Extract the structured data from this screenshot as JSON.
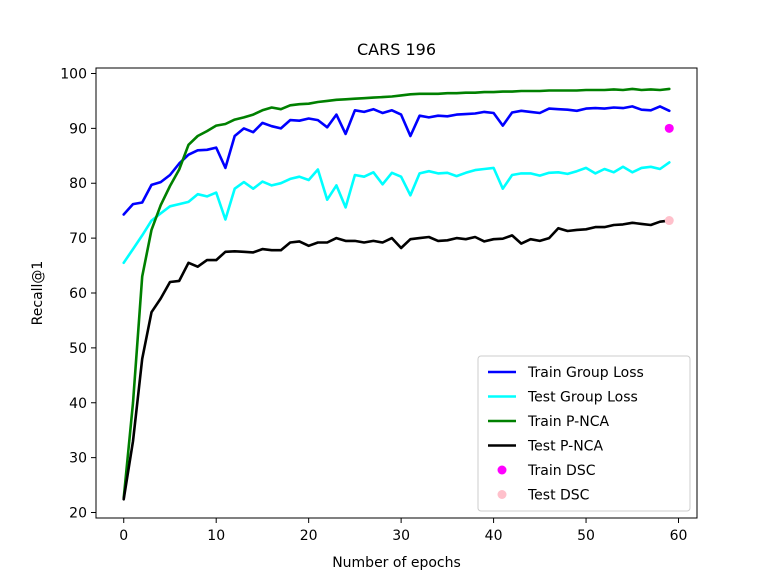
{
  "chart_data": {
    "type": "line",
    "title": "CARS 196",
    "xlabel": "Number of epochs",
    "ylabel": "Recall@1",
    "xlim": [
      -3,
      62
    ],
    "ylim": [
      19,
      101
    ],
    "xticks": [
      0,
      10,
      20,
      30,
      40,
      50,
      60
    ],
    "yticks": [
      20,
      30,
      40,
      50,
      60,
      70,
      80,
      90,
      100
    ],
    "grid": false,
    "legend_position": "lower-right",
    "series": [
      {
        "name": "Train Group Loss",
        "kind": "line",
        "color": "#0000ff",
        "x": [
          0,
          1,
          2,
          3,
          4,
          5,
          6,
          7,
          8,
          9,
          10,
          11,
          12,
          13,
          14,
          15,
          16,
          17,
          18,
          19,
          20,
          21,
          22,
          23,
          24,
          25,
          26,
          27,
          28,
          29,
          30,
          31,
          32,
          33,
          34,
          35,
          36,
          37,
          38,
          39,
          40,
          41,
          42,
          43,
          44,
          45,
          46,
          47,
          48,
          49,
          50,
          51,
          52,
          53,
          54,
          55,
          56,
          57,
          58,
          59
        ],
        "y": [
          74.3,
          76.2,
          76.5,
          79.7,
          80.2,
          81.5,
          83.6,
          85.2,
          86.0,
          86.1,
          86.5,
          82.8,
          88.6,
          90.0,
          89.3,
          91.0,
          90.4,
          90.0,
          91.5,
          91.4,
          91.8,
          91.5,
          90.2,
          92.5,
          89.0,
          93.3,
          93.0,
          93.5,
          92.8,
          93.3,
          92.5,
          88.6,
          92.3,
          92.0,
          92.3,
          92.2,
          92.5,
          92.6,
          92.7,
          93.0,
          92.8,
          90.5,
          92.9,
          93.2,
          93.0,
          92.8,
          93.6,
          93.5,
          93.4,
          93.2,
          93.6,
          93.7,
          93.6,
          93.8,
          93.7,
          94.0,
          93.4,
          93.3,
          94.0,
          93.2
        ]
      },
      {
        "name": "Test Group Loss",
        "kind": "line",
        "color": "#00ffff",
        "x": [
          0,
          1,
          2,
          3,
          4,
          5,
          6,
          7,
          8,
          9,
          10,
          11,
          12,
          13,
          14,
          15,
          16,
          17,
          18,
          19,
          20,
          21,
          22,
          23,
          24,
          25,
          26,
          27,
          28,
          29,
          30,
          31,
          32,
          33,
          34,
          35,
          36,
          37,
          38,
          39,
          40,
          41,
          42,
          43,
          44,
          45,
          46,
          47,
          48,
          49,
          50,
          51,
          52,
          53,
          54,
          55,
          56,
          57,
          58,
          59
        ],
        "y": [
          65.5,
          68.0,
          70.5,
          73.2,
          74.5,
          75.8,
          76.2,
          76.6,
          78.0,
          77.6,
          78.3,
          73.4,
          79.0,
          80.2,
          79.0,
          80.3,
          79.6,
          80.0,
          80.8,
          81.2,
          80.6,
          82.5,
          77.0,
          79.6,
          75.6,
          81.5,
          81.2,
          82.0,
          79.8,
          81.9,
          81.2,
          77.8,
          81.8,
          82.2,
          81.8,
          81.9,
          81.3,
          81.9,
          82.4,
          82.6,
          82.8,
          79.0,
          81.5,
          81.8,
          81.8,
          81.4,
          81.9,
          82.0,
          81.7,
          82.2,
          82.8,
          81.8,
          82.6,
          82.0,
          83.0,
          82.0,
          82.8,
          83.0,
          82.6,
          83.8
        ]
      },
      {
        "name": "Train P-NCA",
        "kind": "line",
        "color": "#008000",
        "x": [
          0,
          1,
          2,
          3,
          4,
          5,
          6,
          7,
          8,
          9,
          10,
          11,
          12,
          13,
          14,
          15,
          16,
          17,
          18,
          19,
          20,
          21,
          22,
          23,
          24,
          25,
          26,
          27,
          28,
          29,
          30,
          31,
          32,
          33,
          34,
          35,
          36,
          37,
          38,
          39,
          40,
          41,
          42,
          43,
          44,
          45,
          46,
          47,
          48,
          49,
          50,
          51,
          52,
          53,
          54,
          55,
          56,
          57,
          58,
          59
        ],
        "y": [
          22.6,
          40.0,
          63.0,
          71.5,
          76.0,
          79.5,
          82.5,
          87.0,
          88.6,
          89.5,
          90.5,
          90.8,
          91.6,
          92.0,
          92.5,
          93.3,
          93.8,
          93.5,
          94.2,
          94.4,
          94.5,
          94.8,
          95.0,
          95.2,
          95.3,
          95.4,
          95.5,
          95.6,
          95.7,
          95.8,
          96.0,
          96.2,
          96.3,
          96.3,
          96.3,
          96.4,
          96.4,
          96.5,
          96.5,
          96.6,
          96.6,
          96.7,
          96.7,
          96.8,
          96.8,
          96.8,
          96.9,
          96.9,
          96.9,
          96.9,
          97.0,
          97.0,
          97.0,
          97.1,
          97.0,
          97.2,
          97.0,
          97.1,
          97.0,
          97.2
        ]
      },
      {
        "name": "Test P-NCA",
        "kind": "line",
        "color": "#000000",
        "x": [
          0,
          1,
          2,
          3,
          4,
          5,
          6,
          7,
          8,
          9,
          10,
          11,
          12,
          13,
          14,
          15,
          16,
          17,
          18,
          19,
          20,
          21,
          22,
          23,
          24,
          25,
          26,
          27,
          28,
          29,
          30,
          31,
          32,
          33,
          34,
          35,
          36,
          37,
          38,
          39,
          40,
          41,
          42,
          43,
          44,
          45,
          46,
          47,
          48,
          49,
          50,
          51,
          52,
          53,
          54,
          55,
          56,
          57,
          58,
          59
        ],
        "y": [
          22.4,
          33.0,
          48.0,
          56.5,
          59.0,
          62.0,
          62.2,
          65.5,
          64.8,
          66.0,
          66.0,
          67.5,
          67.6,
          67.5,
          67.4,
          68.0,
          67.8,
          67.8,
          69.2,
          69.4,
          68.6,
          69.2,
          69.2,
          70.0,
          69.5,
          69.5,
          69.2,
          69.5,
          69.2,
          70.0,
          68.2,
          69.8,
          70.0,
          70.2,
          69.5,
          69.6,
          70.0,
          69.8,
          70.2,
          69.4,
          69.8,
          69.9,
          70.5,
          69.0,
          69.8,
          69.5,
          70.0,
          71.8,
          71.3,
          71.5,
          71.6,
          72.0,
          72.0,
          72.4,
          72.5,
          72.8,
          72.6,
          72.4,
          73.0,
          73.2
        ]
      },
      {
        "name": "Train DSC",
        "kind": "scatter",
        "color": "#ff00ff",
        "x": [
          59
        ],
        "y": [
          90.0
        ]
      },
      {
        "name": "Test DSC",
        "kind": "scatter",
        "color": "#ffc0cb",
        "x": [
          59
        ],
        "y": [
          73.2
        ]
      }
    ]
  }
}
